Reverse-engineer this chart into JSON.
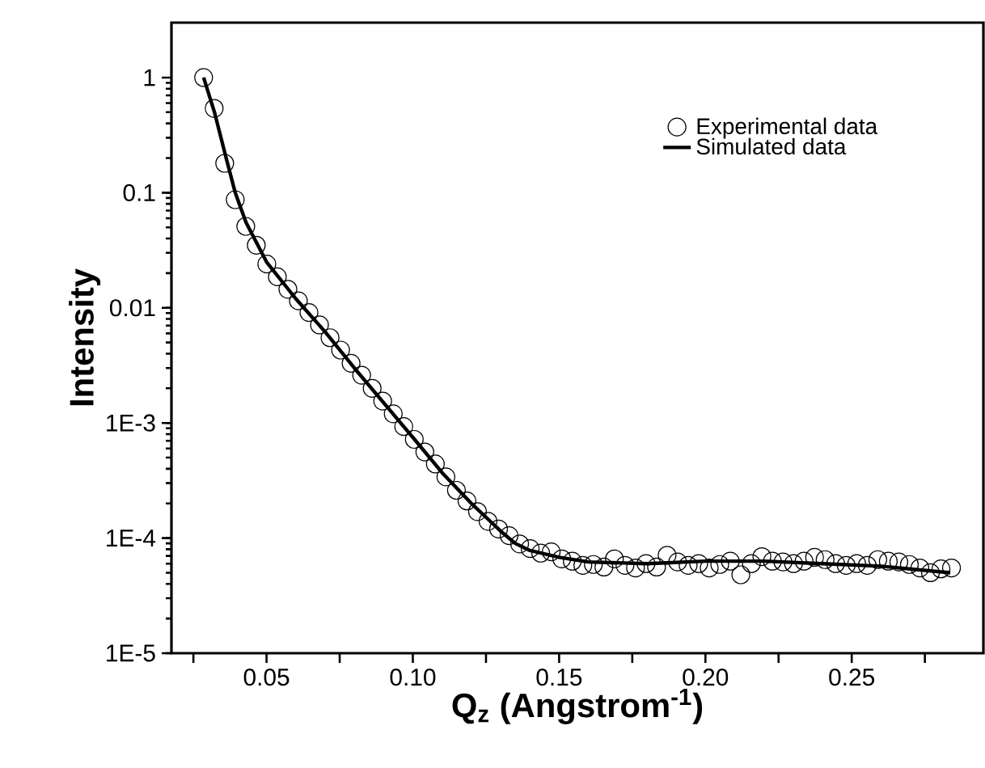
{
  "chart_data": {
    "type": "scatter",
    "xlabel": "Q$_{z}$ (Angstrom$^{-1}$)",
    "ylabel": "Intensity",
    "log": "y",
    "xlim": [
      0.0175,
      0.295
    ],
    "ylim": [
      1e-05,
      3
    ],
    "xticks": [
      {
        "value": 0.025,
        "label": null
      },
      0.05,
      {
        "value": 0.075,
        "label": null
      },
      {
        "value": 0.1,
        "label": "0.10"
      },
      {
        "value": 0.125,
        "label": null
      },
      {
        "value": 0.15,
        "label": "0.15"
      },
      {
        "value": 0.175,
        "label": null
      },
      {
        "value": 0.2,
        "label": "0.20"
      },
      {
        "value": 0.225,
        "label": null
      },
      {
        "value": 0.25,
        "label": "0.25"
      },
      {
        "value": 0.275,
        "label": null
      }
    ],
    "yticks": [
      {
        "value": 1e-05,
        "label": "1E-5"
      },
      {
        "value": 0.0001,
        "label": "1E-4"
      },
      {
        "value": 0.001,
        "label": "1E-3"
      },
      0.01,
      0.1,
      1
    ],
    "legend": "top right",
    "series": [
      {
        "name": "Experimental data",
        "marker": "circle",
        "color": "#000000",
        "x": [
          0.0285,
          0.0321,
          0.0357,
          0.0393,
          0.0429,
          0.0465,
          0.0501,
          0.0537,
          0.0573,
          0.0609,
          0.0645,
          0.0681,
          0.0717,
          0.0753,
          0.0789,
          0.0825,
          0.0861,
          0.0897,
          0.0933,
          0.0969,
          0.1005,
          0.1041,
          0.1077,
          0.1113,
          0.1149,
          0.1185,
          0.1221,
          0.1257,
          0.1293,
          0.1329,
          0.1365,
          0.1401,
          0.1437,
          0.1473,
          0.1509,
          0.1545,
          0.1581,
          0.1617,
          0.1653,
          0.1689,
          0.1725,
          0.1761,
          0.1797,
          0.1833,
          0.1869,
          0.1905,
          0.1941,
          0.1977,
          0.2013,
          0.2049,
          0.2085,
          0.2121,
          0.2157,
          0.2193,
          0.2229,
          0.2265,
          0.2301,
          0.2337,
          0.2373,
          0.2409,
          0.2445,
          0.2481,
          0.2517,
          0.2553,
          0.2589,
          0.2625,
          0.2661,
          0.2697,
          0.2733,
          0.2769,
          0.2805,
          0.2841
        ],
        "values": [
          1.0,
          0.54,
          0.18,
          0.087,
          0.051,
          0.035,
          0.024,
          0.0186,
          0.0145,
          0.0115,
          0.0091,
          0.0071,
          0.0055,
          0.0043,
          0.0033,
          0.0026,
          0.002,
          0.00155,
          0.0012,
          0.00093,
          0.00072,
          0.00056,
          0.00044,
          0.00034,
          0.00026,
          0.00021,
          0.00017,
          0.00014,
          0.00012,
          0.000105,
          8.9e-05,
          8.1e-05,
          7.4e-05,
          7.6e-05,
          6.6e-05,
          6.3e-05,
          5.8e-05,
          5.9e-05,
          5.6e-05,
          6.6e-05,
          5.8e-05,
          5.5e-05,
          6e-05,
          5.6e-05,
          7.1e-05,
          6.2e-05,
          5.8e-05,
          6e-05,
          5.5e-05,
          5.9e-05,
          6.3e-05,
          4.8e-05,
          6e-05,
          6.9e-05,
          6.3e-05,
          6.2e-05,
          6e-05,
          6.3e-05,
          6.8e-05,
          6.5e-05,
          6e-05,
          5.8e-05,
          6e-05,
          5.8e-05,
          6.5e-05,
          6.3e-05,
          6.2e-05,
          5.9e-05,
          5.5e-05,
          5e-05,
          5.4e-05,
          5.5e-05
        ]
      },
      {
        "name": "Simulated data",
        "type": "line",
        "color": "#000000",
        "x": [
          0.0285,
          0.0322,
          0.0362,
          0.0393,
          0.043,
          0.05,
          0.06,
          0.07,
          0.08,
          0.09,
          0.1,
          0.11,
          0.12,
          0.13,
          0.135,
          0.14,
          0.15,
          0.16,
          0.18,
          0.2,
          0.22,
          0.24,
          0.26,
          0.2837
        ],
        "values": [
          1.0,
          0.5,
          0.2,
          0.1,
          0.055,
          0.025,
          0.012,
          0.0062,
          0.003,
          0.0015,
          0.00075,
          0.00037,
          0.0002,
          0.000115,
          9e-05,
          7.8e-05,
          6.8e-05,
          6.2e-05,
          6e-05,
          6.3e-05,
          6.3e-05,
          6e-05,
          5.7e-05,
          5e-05
        ]
      }
    ]
  }
}
